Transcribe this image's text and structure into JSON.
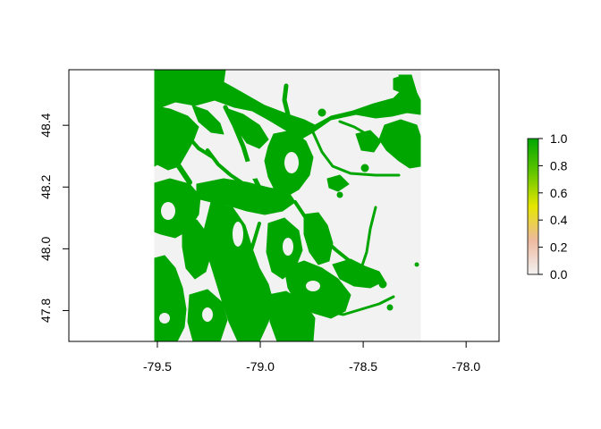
{
  "map": {
    "x_ticks": [
      "-79.5",
      "-79.0",
      "-78.5",
      "-78.0"
    ],
    "x_tick_values": [
      -79.5,
      -79.0,
      -78.5,
      -78.0
    ],
    "y_ticks": [
      "47.8",
      "48.0",
      "48.2",
      "48.4"
    ],
    "y_tick_values": [
      47.8,
      48.0,
      48.2,
      48.4
    ],
    "xlim": [
      -79.93,
      -77.84
    ],
    "ylim": [
      47.7,
      48.58
    ],
    "raster_extent": {
      "xmin": -79.515,
      "xmax": -78.22,
      "ymin": 47.7,
      "ymax": 48.58
    },
    "na_color": "#F2F2F2",
    "habitat_color": "#00A600"
  },
  "legend": {
    "ticks": [
      "0.0",
      "0.2",
      "0.4",
      "0.6",
      "0.8",
      "1.0"
    ],
    "tick_values": [
      0.0,
      0.2,
      0.4,
      0.6,
      0.8,
      1.0
    ],
    "range": [
      0,
      1
    ],
    "colors": [
      "#F2F2F2",
      "#EEB99F",
      "#E6E600",
      "#63C600",
      "#00A600"
    ]
  }
}
